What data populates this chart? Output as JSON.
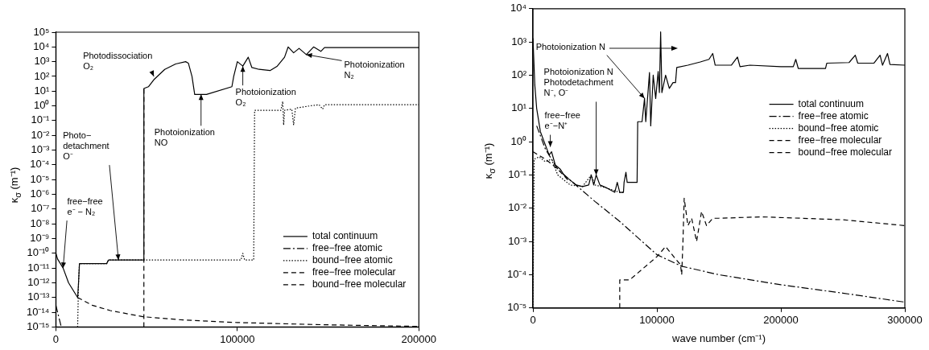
{
  "chart_data": [
    {
      "type": "line",
      "ylabel": "κ$_{σ}$ (m⁻¹)",
      "log": "y",
      "legend": "bottom right",
      "xlim": [
        0,
        200000
      ],
      "xticks": [
        0,
        100000,
        200000
      ],
      "ylim": [
        1e-15,
        100000.0
      ],
      "yticks": [
        {
          "value": 1e-15,
          "label": "10⁻¹⁵"
        },
        {
          "value": 1e-14,
          "label": "10⁻¹⁴"
        },
        {
          "value": 1e-13,
          "label": "10⁻¹³"
        },
        {
          "value": 1e-12,
          "label": "10⁻¹²"
        },
        {
          "value": 1e-11,
          "label": "10⁻¹¹"
        },
        {
          "value": 1e-10,
          "label": "10⁻¹⁰"
        },
        {
          "value": 1e-09,
          "label": "10⁻⁹"
        },
        {
          "value": 1e-08,
          "label": "10⁻⁸"
        },
        {
          "value": 1e-07,
          "label": "10⁻⁷"
        },
        {
          "value": 1e-06,
          "label": "10⁻⁶"
        },
        {
          "value": 1e-05,
          "label": "10⁻⁵"
        },
        {
          "value": 0.0001,
          "label": "10⁻⁴"
        },
        {
          "value": 0.001,
          "label": "10⁻³"
        },
        {
          "value": 0.01,
          "label": "10⁻²"
        },
        {
          "value": 0.1,
          "label": "10⁻¹"
        },
        {
          "value": 1,
          "label": "10⁰"
        },
        {
          "value": 10,
          "label": "10¹"
        },
        {
          "value": 100,
          "label": "10²"
        },
        {
          "value": 1000,
          "label": "10³"
        },
        {
          "value": 10000,
          "label": "10⁴"
        },
        {
          "value": 100000,
          "label": "10⁵"
        }
      ],
      "series": [
        {
          "name": "total continuum",
          "color": "#000000",
          "line_style": "solid",
          "x": [
            0,
            1000,
            4000,
            7000,
            12000,
            12500,
            13000,
            28000,
            29000,
            48400,
            48500,
            51000,
            54000,
            60000,
            66000,
            71500,
            73000,
            75000,
            76500,
            83000,
            97000,
            98000,
            100000,
            103000,
            106000,
            108000,
            112000,
            118000,
            122000,
            126000,
            128000,
            131000,
            134000,
            138000,
            142000,
            146000,
            148000,
            200000
          ],
          "values": [
            1e-10,
            4e-11,
            1e-11,
            1e-12,
            1e-13,
            1e-12,
            2e-11,
            2e-11,
            3.5e-11,
            3.5e-11,
            15,
            20,
            60,
            300,
            700,
            1000,
            800,
            100,
            6,
            6,
            20,
            100,
            1000,
            500,
            2000,
            400,
            300,
            250,
            500,
            2000,
            10000,
            4000,
            8000,
            3000,
            10000,
            5000,
            9000,
            9000
          ]
        },
        {
          "name": "free−free atomic",
          "color": "#000000",
          "line_style": "dashdot",
          "x": [
            0,
            3000
          ],
          "values": [
            3e-14,
            1e-15
          ]
        },
        {
          "name": "bound−free atomic",
          "color": "#000000",
          "line_style": "dotted",
          "x": [
            12000,
            12500,
            13000,
            28000,
            29000,
            102000,
            103000,
            104000,
            109000,
            109500,
            124000,
            125000,
            125500,
            126000,
            130000,
            131000,
            132000,
            140000,
            145000,
            147000,
            148000,
            200000
          ],
          "values": [
            1e-15,
            1e-12,
            2e-11,
            2e-11,
            3.5e-11,
            3.5e-11,
            1e-10,
            3.5e-11,
            3.5e-11,
            0.5,
            0.5,
            2,
            0.05,
            0.5,
            0.6,
            0.05,
            0.7,
            1,
            1.2,
            0.6,
            1.2,
            1.2
          ]
        },
        {
          "name": "free−free molecular",
          "color": "#000000",
          "line_style": "dashed",
          "x": [
            12000,
            20000,
            30000,
            48000,
            70000,
            100000,
            150000,
            200000
          ],
          "values": [
            1e-13,
            3e-14,
            1.3e-14,
            5e-15,
            3e-15,
            2e-15,
            1.4e-15,
            1.1e-15
          ]
        },
        {
          "name": "bound−free molecular",
          "color": "#000000",
          "line_style": "dashed",
          "x": [
            48500,
            48500
          ],
          "values": [
            1e-15,
            15
          ]
        }
      ],
      "annotations": [
        {
          "text": "Photodissociation\nO₂",
          "x": 54000,
          "y": 100
        },
        {
          "text": "Photoionization\nNO",
          "x": 80000,
          "y": 6
        },
        {
          "text": "Photoionization\nO₂",
          "x": 103000,
          "y": 500
        },
        {
          "text": "Photoionization\nN₂",
          "x": 138000,
          "y": 3000
        },
        {
          "text": "Photo−\ndetachment\nO⁻",
          "x": 34500,
          "y": 3.5e-11
        },
        {
          "text": "free−free\ne⁻ − N₂",
          "x": 4000,
          "y": 1e-11
        }
      ]
    },
    {
      "type": "line",
      "xlabel": "wave number (cm⁻¹)",
      "ylabel": "κ$_{σ}$ (m⁻¹)",
      "log": "y",
      "legend": "right",
      "xlim": [
        0,
        300000
      ],
      "xticks": [
        0,
        100000,
        200000,
        300000
      ],
      "ylim": [
        1e-05,
        10000.0
      ],
      "yticks": [
        {
          "value": 1e-05,
          "label": "10⁻⁵"
        },
        {
          "value": 0.0001,
          "label": "10⁻⁴"
        },
        {
          "value": 0.001,
          "label": "10⁻³"
        },
        {
          "value": 0.01,
          "label": "10⁻²"
        },
        {
          "value": 0.1,
          "label": "10⁻¹"
        },
        {
          "value": 1,
          "label": "10⁰"
        },
        {
          "value": 10,
          "label": "10¹"
        },
        {
          "value": 100,
          "label": "10²"
        },
        {
          "value": 1000,
          "label": "10³"
        },
        {
          "value": 10000,
          "label": "10⁴"
        }
      ],
      "series": [
        {
          "name": "total continuum",
          "color": "#000000",
          "line_style": "solid",
          "x": [
            0,
            1500,
            3000,
            6000,
            10000,
            13000,
            15000,
            18000,
            22000,
            25000,
            30000,
            35000,
            40000,
            45000,
            47000,
            49000,
            51000,
            54000,
            60000,
            66000,
            68000,
            70000,
            73000,
            73500,
            75000,
            76000,
            84000,
            84500,
            88000,
            90000,
            91000,
            94000,
            95000,
            97000,
            99000,
            101000,
            102000,
            103000,
            104000,
            107000,
            110000,
            113000,
            115000,
            116000,
            125000,
            135000,
            142000,
            145000,
            147000,
            160000,
            165000,
            167000,
            175000,
            200000,
            210000,
            212000,
            214000,
            236000,
            237000,
            255000,
            260000,
            262000,
            275000,
            280000,
            282000,
            286000,
            288000,
            300000
          ],
          "values": [
            1300,
            50,
            10,
            2,
            0.8,
            0.4,
            0.5,
            0.2,
            0.15,
            0.1,
            0.07,
            0.05,
            0.045,
            0.05,
            0.1,
            0.05,
            0.1,
            0.05,
            0.04,
            0.03,
            0.06,
            0.03,
            0.03,
            0.06,
            0.12,
            0.06,
            0.06,
            4,
            4,
            20,
            4,
            120,
            3,
            100,
            20,
            130,
            30,
            2000,
            30,
            100,
            40,
            60,
            60,
            170,
            200,
            250,
            300,
            450,
            200,
            200,
            350,
            180,
            200,
            180,
            180,
            300,
            160,
            160,
            230,
            240,
            400,
            230,
            230,
            400,
            200,
            450,
            210,
            200
          ]
        },
        {
          "name": "free−free atomic",
          "color": "#000000",
          "line_style": "dashdot",
          "x": [
            3000,
            10000,
            20000,
            30000,
            50000,
            70000,
            100000,
            120000,
            150000,
            200000,
            250000,
            300000
          ],
          "values": [
            3,
            0.6,
            0.15,
            0.07,
            0.016,
            0.004,
            0.0004,
            0.00018,
            0.0001,
            5e-05,
            2.8e-05,
            1.5e-05
          ]
        },
        {
          "name": "bound−free atomic",
          "color": "#000000",
          "line_style": "dotted",
          "x": [
            0,
            1000,
            5000,
            10000,
            15000,
            20000,
            30000,
            40000,
            47000,
            50000,
            60000,
            70000,
            73000
          ],
          "values": [
            1e-05,
            0.3,
            0.35,
            0.25,
            0.3,
            0.1,
            0.05,
            0.045,
            0.1,
            0.05,
            0.04,
            0.03,
            0.03
          ]
        },
        {
          "name": "free−free molecular",
          "color": "#000000",
          "line_style": "dashed",
          "x": [
            0,
            10000,
            20000,
            30000
          ],
          "values": [
            0.5,
            0.3,
            0.15,
            0.06
          ]
        },
        {
          "name": "bound−free molecular",
          "color": "#000000",
          "line_style": "dashed",
          "x": [
            70000,
            70000,
            78000,
            100000,
            107000,
            115000,
            119000,
            120000,
            121000,
            122000,
            125000,
            128000,
            132000,
            136000,
            140000,
            145000,
            150000,
            185000,
            250000,
            300000
          ],
          "values": [
            1e-05,
            7e-05,
            7e-05,
            0.00035,
            0.0007,
            0.0003,
            0.0002,
            0.0001,
            0.001,
            0.02,
            0.003,
            0.005,
            0.001,
            0.008,
            0.003,
            0.005,
            0.005,
            0.0055,
            0.0045,
            0.003
          ]
        }
      ],
      "annotations": [
        {
          "text": "Photoionization N",
          "x": 90000,
          "y": 20
        },
        {
          "text": "Photoionization N\nPhotodetachment\nN⁻, O⁻",
          "x": 51000,
          "y": 0.1
        },
        {
          "text": "free−free\ne⁻−N⁺",
          "x": 14000,
          "y": 0.7
        }
      ]
    }
  ]
}
